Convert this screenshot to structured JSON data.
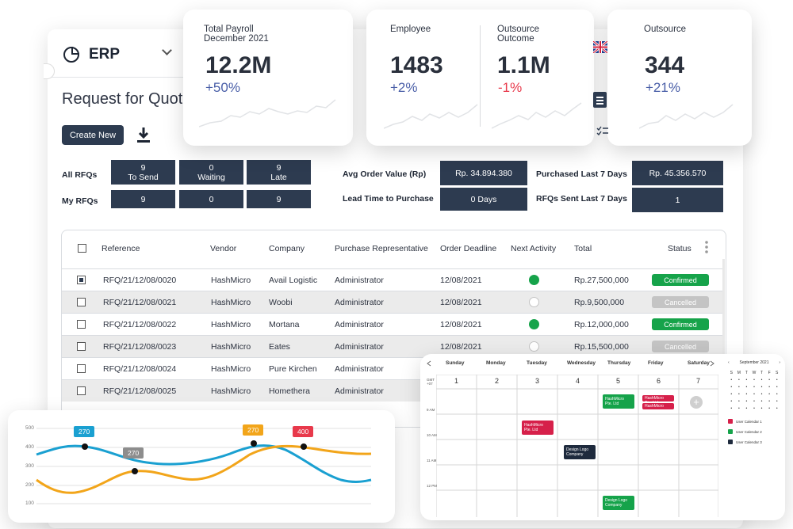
{
  "app": {
    "name": "ERP",
    "page_title": "Request for Quotation",
    "create_button": "Create New"
  },
  "stats": {
    "all_rfqs_label": "All RFQs",
    "my_rfqs_label": "My RFQs",
    "all": [
      {
        "value": "9",
        "label": "To Send"
      },
      {
        "value": "0",
        "label": "Waiting"
      },
      {
        "value": "9",
        "label": "Late"
      }
    ],
    "mine": [
      "9",
      "0",
      "9"
    ],
    "avg_order_label": "Avg Order Value (Rp)",
    "avg_order_value": "Rp. 34.894.380",
    "lead_time_label": "Lead Time to Purchase",
    "lead_time_value": "0 Days",
    "purchased_label": "Purchased Last 7 Days",
    "purchased_value": "Rp. 45.356.570",
    "rfqs_sent_label": "RFQs Sent Last 7 Days",
    "rfqs_sent_value": "1"
  },
  "table": {
    "headers": [
      "Reference",
      "Vendor",
      "Company",
      "Purchase Representative",
      "Order Deadline",
      "Next Activity",
      "Total",
      "Status"
    ],
    "rows": [
      {
        "ref": "RFQ/21/12/08/0020",
        "vendor": "HashMicro",
        "company": "Avail Logistic",
        "rep": "Administrator",
        "deadline": "12/08/2021",
        "total": "Rp.27,500,000",
        "status": "Confirmed"
      },
      {
        "ref": "RFQ/21/12/08/0021",
        "vendor": "HashMicro",
        "company": "Woobi",
        "rep": "Administrator",
        "deadline": "12/08/2021",
        "total": "Rp.9,500,000",
        "status": "Cancelled"
      },
      {
        "ref": "RFQ/21/12/08/0022",
        "vendor": "HashMicro",
        "company": "Mortana",
        "rep": "Administrator",
        "deadline": "12/08/2021",
        "total": "Rp.12,000,000",
        "status": "Confirmed"
      },
      {
        "ref": "RFQ/21/12/08/0023",
        "vendor": "HashMicro",
        "company": "Eates",
        "rep": "Administrator",
        "deadline": "12/08/2021",
        "total": "Rp.15,500,000",
        "status": "Cancelled"
      },
      {
        "ref": "RFQ/21/12/08/0024",
        "vendor": "HashMicro",
        "company": "Pure Kirchen",
        "rep": "Administrator",
        "deadline": "",
        "total": "",
        "status": ""
      },
      {
        "ref": "RFQ/21/12/08/0025",
        "vendor": "HashMicro",
        "company": "Homethera",
        "rep": "Administrator",
        "deadline": "",
        "total": "",
        "status": ""
      }
    ],
    "confirmed_color": "#16a34a",
    "cancelled_color": "#c4c4c4"
  },
  "kpis": {
    "payroll": {
      "label1": "Total Payroll",
      "label2": "December 2021",
      "value": "12.2M",
      "delta": "+50%"
    },
    "employee": {
      "label": "Employee",
      "value": "1483",
      "delta": "+2%"
    },
    "outsource_outcome": {
      "label1": "Outsource",
      "label2": "Outcome",
      "value": "1.1M",
      "delta": "-1%"
    },
    "outsource": {
      "label": "Outsource",
      "value": "344",
      "delta": "+21%"
    },
    "positive_color": "#4a5fa8",
    "negative_color": "#e8394b"
  },
  "calendar": {
    "days": [
      "Sunday",
      "Monday",
      "Tuesday",
      "Wednesday",
      "Thursday",
      "Friday",
      "Saturday"
    ],
    "dates": [
      "1",
      "2",
      "3",
      "4",
      "5",
      "6",
      "7"
    ],
    "tz": "GMT +07",
    "times": [
      "9 AM",
      "10 AM",
      "11 AM",
      "12 PM"
    ],
    "events": {
      "thu_9": "HashMicro Pte. Ltd",
      "fri_9a": "HashMicro Pte. Ltd",
      "fri_9b": "HashMicro",
      "tue_10": "HashMicro Pte. Ltd",
      "wed_11": "Design Logo Company",
      "thu_1": "Design Logo Company"
    },
    "mini": {
      "month": "September 2021",
      "weekdays": [
        "S",
        "M",
        "T",
        "W",
        "T",
        "F",
        "S"
      ],
      "users": [
        "User Calendar 1",
        "User Calendar 2",
        "User Calendar 3"
      ],
      "user_colors": [
        "#d6204a",
        "#15a34a",
        "#1e2a3d"
      ]
    }
  },
  "line_chart": {
    "yticks": [
      "500",
      "400",
      "300",
      "200",
      "100"
    ],
    "tags": [
      "270",
      "270",
      "270",
      "400"
    ],
    "tag_colors": [
      "#1aa0d1",
      "#8d8d8d",
      "#f2a51a",
      "#e8394b"
    ],
    "series_colors": [
      "#1aa0d1",
      "#f2a51a"
    ]
  }
}
